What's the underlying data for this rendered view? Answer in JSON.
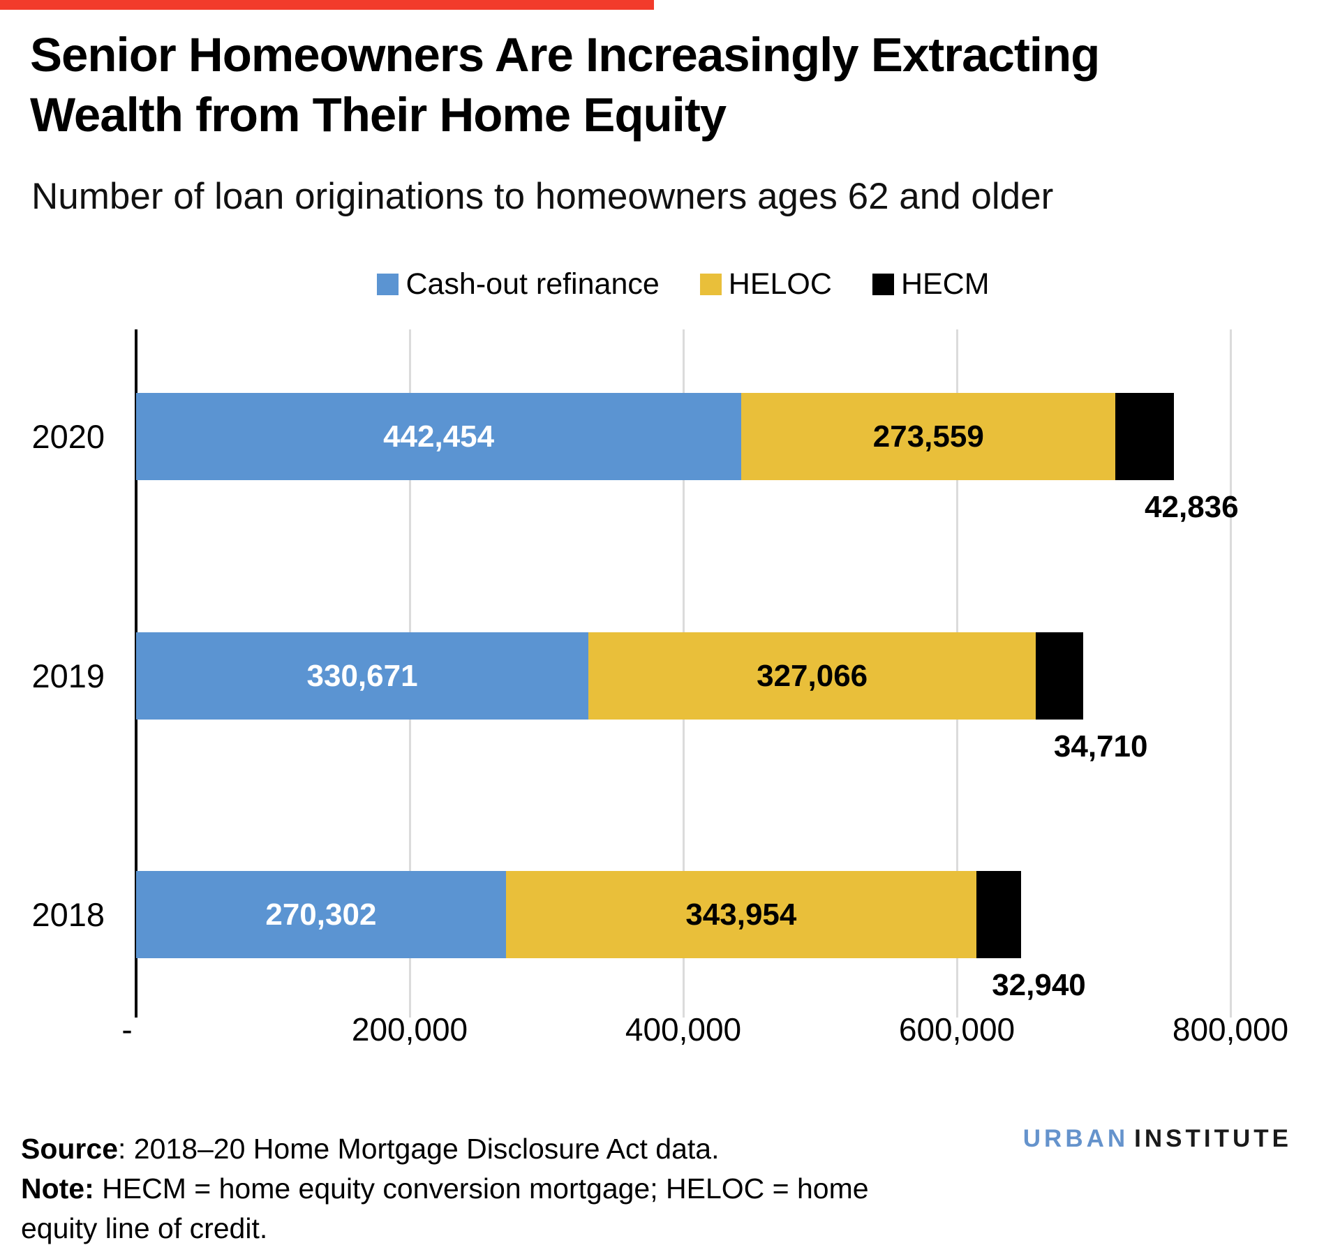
{
  "decor": {
    "top_bar_color": "#F23B2B"
  },
  "header": {
    "title_line1": "Senior Homeowners Are Increasingly Extracting",
    "title_line2": "Wealth from Their Home Equity",
    "subtitle": "Number of loan originations to homeowners ages 62 and older"
  },
  "chart_data": {
    "type": "bar",
    "orientation": "horizontal",
    "stacked": true,
    "title": "Senior Homeowners Are Increasingly Extracting Wealth from Their Home Equity",
    "subtitle": "Number of loan originations to homeowners ages 62 and older",
    "categories": [
      "2020",
      "2019",
      "2018"
    ],
    "series": [
      {
        "name": "Cash-out refinance",
        "color": "#5B94D2",
        "values": [
          442454,
          330671,
          270302
        ],
        "labels": [
          "442,454",
          "330,671",
          "270,302"
        ],
        "label_color": "#FFFFFF",
        "label_placement": "inside"
      },
      {
        "name": "HELOC",
        "color": "#E9BF3A",
        "values": [
          273559,
          327066,
          343954
        ],
        "labels": [
          "273,559",
          "327,066",
          "343,954"
        ],
        "label_color": "#000000",
        "label_placement": "inside"
      },
      {
        "name": "HECM",
        "color": "#000000",
        "values": [
          42836,
          34710,
          32940
        ],
        "labels": [
          "42,836",
          "34,710",
          "32,940"
        ],
        "label_color": "#000000",
        "label_placement": "outside"
      }
    ],
    "xlim": [
      0,
      800000
    ],
    "x_ticks": [
      {
        "value": 0,
        "label": "-"
      },
      {
        "value": 200000,
        "label": "200,000"
      },
      {
        "value": 400000,
        "label": "400,000"
      },
      {
        "value": 600000,
        "label": "600,000"
      },
      {
        "value": 800000,
        "label": "800,000"
      }
    ],
    "grid": true,
    "gridline_color": "#DBDBDB",
    "legend_position": "top"
  },
  "footer": {
    "source_label": "Source",
    "source_rest": ": 2018–20 Home Mortgage Disclosure Act data.",
    "note_label": "Note:",
    "note_rest_line1": " HECM = home equity conversion mortgage; HELOC = home",
    "note_line2": "equity line of credit."
  },
  "logo": {
    "part1": "URBAN",
    "part2": "INSTITUTE",
    "part1_color": "#6593CC",
    "part2_color": "#1A1A1A"
  }
}
